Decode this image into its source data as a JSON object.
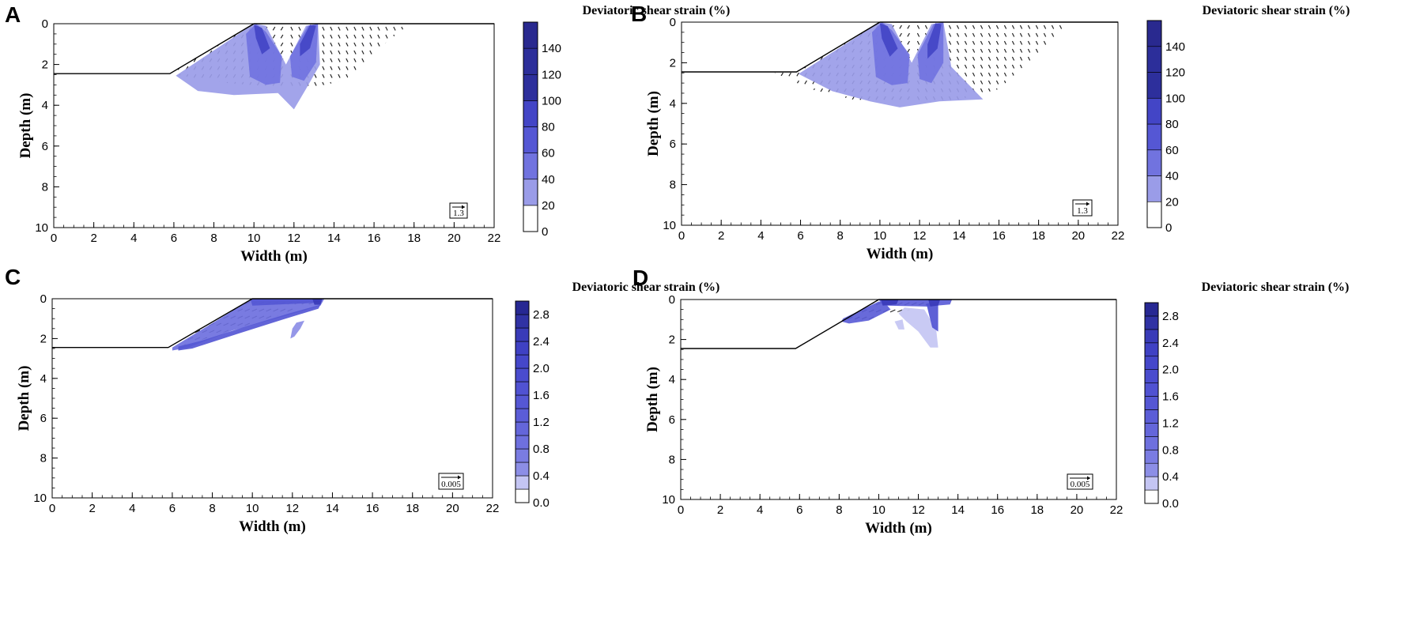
{
  "chart_data": [
    {
      "type": "contour",
      "panel": "A",
      "title": "",
      "xlabel": "Width (m)",
      "ylabel": "Depth (m)",
      "xlim": [
        0,
        22
      ],
      "ylim": [
        0,
        10
      ],
      "x_ticks": [
        "0",
        "2",
        "4",
        "6",
        "8",
        "10",
        "12",
        "14",
        "16",
        "18",
        "20",
        "22"
      ],
      "y_ticks": [
        "0",
        "2",
        "4",
        "6",
        "8",
        "10"
      ],
      "slope_profile": [
        [
          0,
          2.45
        ],
        [
          5.8,
          2.45
        ],
        [
          10,
          0
        ],
        [
          22,
          0
        ]
      ],
      "colorbar": {
        "title": "Deviatoric shear strain (%)",
        "levels": [
          0,
          20,
          40,
          60,
          80,
          100,
          120,
          140,
          160
        ],
        "labels": [
          "0",
          "20",
          "40",
          "60",
          "80",
          "100",
          "120",
          "140"
        ],
        "colors": [
          "#ffffff",
          "#9a9ce8",
          "#7173df",
          "#5557d4",
          "#4345c6",
          "#2d2f9c",
          "#2c2e9a",
          "#29298f"
        ]
      },
      "reference_vector": "1.3",
      "strain_regions": [
        {
          "level": 1,
          "points": [
            [
              6.1,
              2.55
            ],
            [
              10.0,
              0.0
            ],
            [
              10.6,
              0.1
            ],
            [
              11.6,
              2.0
            ],
            [
              12.6,
              0.1
            ],
            [
              13.2,
              0.0
            ],
            [
              13.3,
              2.0
            ],
            [
              12.6,
              3.2
            ],
            [
              12.0,
              4.2
            ],
            [
              11.2,
              3.4
            ],
            [
              9.0,
              3.5
            ],
            [
              7.2,
              3.3
            ]
          ]
        },
        {
          "level": 2,
          "points": [
            [
              9.6,
              0.5
            ],
            [
              10.1,
              0.0
            ],
            [
              10.6,
              0.4
            ],
            [
              11.4,
              1.6
            ],
            [
              11.3,
              2.9
            ],
            [
              10.6,
              3.0
            ],
            [
              9.8,
              2.6
            ]
          ]
        },
        {
          "level": 2,
          "points": [
            [
              11.8,
              1.6
            ],
            [
              12.7,
              0.1
            ],
            [
              13.2,
              0.0
            ],
            [
              13.1,
              1.9
            ],
            [
              12.5,
              2.8
            ],
            [
              11.9,
              2.6
            ]
          ]
        },
        {
          "level": 4,
          "points": [
            [
              10.0,
              0.05
            ],
            [
              10.4,
              0.2
            ],
            [
              10.8,
              1.2
            ],
            [
              10.4,
              1.5
            ],
            [
              10.1,
              0.7
            ]
          ]
        },
        {
          "level": 4,
          "points": [
            [
              12.8,
              0.05
            ],
            [
              13.1,
              0.1
            ],
            [
              12.8,
              1.2
            ],
            [
              12.3,
              1.6
            ],
            [
              12.3,
              1.0
            ]
          ]
        }
      ],
      "vector_zone": [
        [
          5.8,
          2.45
        ],
        [
          10.0,
          0.0
        ],
        [
          17.8,
          0.0
        ],
        [
          16.5,
          1.0
        ],
        [
          14.5,
          2.8
        ],
        [
          12.5,
          3.2
        ],
        [
          8.5,
          2.9
        ]
      ]
    },
    {
      "type": "contour",
      "panel": "B",
      "title": "",
      "xlabel": "Width (m)",
      "ylabel": "Depth (m)",
      "xlim": [
        0,
        22
      ],
      "ylim": [
        0,
        10
      ],
      "x_ticks": [
        "0",
        "2",
        "4",
        "6",
        "8",
        "10",
        "12",
        "14",
        "16",
        "18",
        "20",
        "22"
      ],
      "y_ticks": [
        "0",
        "2",
        "4",
        "6",
        "8",
        "10"
      ],
      "slope_profile": [
        [
          0,
          2.45
        ],
        [
          5.8,
          2.45
        ],
        [
          10,
          0
        ],
        [
          22,
          0
        ]
      ],
      "colorbar": {
        "title": "Deviatoric shear strain (%)",
        "levels": [
          0,
          20,
          40,
          60,
          80,
          100,
          120,
          140,
          160
        ],
        "labels": [
          "0",
          "20",
          "40",
          "60",
          "80",
          "100",
          "120",
          "140"
        ],
        "colors": [
          "#ffffff",
          "#9a9ce8",
          "#7173df",
          "#5557d4",
          "#4345c6",
          "#2d2f9c",
          "#2c2e9a",
          "#29298f"
        ]
      },
      "reference_vector": "1.3",
      "strain_regions": [
        {
          "level": 1,
          "points": [
            [
              5.9,
              2.55
            ],
            [
              10.0,
              0.0
            ],
            [
              10.6,
              0.1
            ],
            [
              11.6,
              2.0
            ],
            [
              12.6,
              0.1
            ],
            [
              13.2,
              0.0
            ],
            [
              13.6,
              2.2
            ],
            [
              15.2,
              3.8
            ],
            [
              13.0,
              3.9
            ],
            [
              11.0,
              4.2
            ],
            [
              9.5,
              3.9
            ],
            [
              7.6,
              3.4
            ]
          ]
        },
        {
          "level": 2,
          "points": [
            [
              9.6,
              0.5
            ],
            [
              10.1,
              0.0
            ],
            [
              10.6,
              0.4
            ],
            [
              11.5,
              1.6
            ],
            [
              11.4,
              3.0
            ],
            [
              10.6,
              3.1
            ],
            [
              9.8,
              2.7
            ]
          ]
        },
        {
          "level": 2,
          "points": [
            [
              11.9,
              1.6
            ],
            [
              12.7,
              0.1
            ],
            [
              13.2,
              0.0
            ],
            [
              13.2,
              2.0
            ],
            [
              12.6,
              3.0
            ],
            [
              12.0,
              2.8
            ]
          ]
        },
        {
          "level": 4,
          "points": [
            [
              10.0,
              0.05
            ],
            [
              10.4,
              0.2
            ],
            [
              10.9,
              1.3
            ],
            [
              10.5,
              1.7
            ],
            [
              10.1,
              0.8
            ]
          ]
        },
        {
          "level": 4,
          "points": [
            [
              12.8,
              0.05
            ],
            [
              13.1,
              0.1
            ],
            [
              12.9,
              1.3
            ],
            [
              12.4,
              1.8
            ],
            [
              12.4,
              1.1
            ]
          ]
        }
      ],
      "vector_zone": [
        [
          4.6,
          2.45
        ],
        [
          5.8,
          2.45
        ],
        [
          10.0,
          0.0
        ],
        [
          19.6,
          0.0
        ],
        [
          18.0,
          1.5
        ],
        [
          16.0,
          3.3
        ],
        [
          14.0,
          3.8
        ],
        [
          12.0,
          4.0
        ],
        [
          9.0,
          3.9
        ],
        [
          6.5,
          3.3
        ]
      ]
    },
    {
      "type": "contour",
      "panel": "C",
      "title": "",
      "xlabel": "Width (m)",
      "ylabel": "Depth (m)",
      "xlim": [
        0,
        22
      ],
      "ylim": [
        0,
        10
      ],
      "x_ticks": [
        "0",
        "2",
        "4",
        "6",
        "8",
        "10",
        "12",
        "14",
        "16",
        "18",
        "20",
        "22"
      ],
      "y_ticks": [
        "0",
        "2",
        "4",
        "6",
        "8",
        "10"
      ],
      "slope_profile": [
        [
          0,
          2.45
        ],
        [
          5.8,
          2.45
        ],
        [
          10,
          0
        ],
        [
          22,
          0
        ]
      ],
      "colorbar": {
        "title": "Deviatoric shear strain (%)",
        "levels": [
          0,
          0.2,
          0.4,
          0.6,
          0.8,
          1.0,
          1.2,
          1.4,
          1.6,
          1.8,
          2.0,
          2.2,
          2.4,
          2.6,
          2.8,
          3.0
        ],
        "labels": [
          "0.0",
          "0.4",
          "0.8",
          "1.2",
          "1.6",
          "2.0",
          "2.4",
          "2.8"
        ],
        "colors": [
          "#ffffff",
          "#c4c5f3",
          "#8c8ee6",
          "#7a7ce2",
          "#6e70de",
          "#6466da",
          "#5b5dd7",
          "#5557d4",
          "#5052d2",
          "#4a4cce",
          "#4547ca",
          "#3f41c4",
          "#393bb8",
          "#3032a4",
          "#272893"
        ]
      },
      "reference_vector": "0.005",
      "strain_regions": [
        {
          "level": 4,
          "points": [
            [
              6.0,
              2.45
            ],
            [
              10.0,
              0.0
            ],
            [
              13.6,
              0.0
            ],
            [
              13.4,
              0.35
            ],
            [
              11.5,
              0.9
            ],
            [
              9.0,
              1.6
            ],
            [
              6.8,
              2.45
            ],
            [
              6.0,
              2.6
            ]
          ]
        },
        {
          "level": 7,
          "points": [
            [
              6.3,
              2.4
            ],
            [
              7.5,
              2.1
            ],
            [
              9.5,
              1.45
            ],
            [
              11.8,
              0.75
            ],
            [
              13.4,
              0.3
            ],
            [
              13.3,
              0.5
            ],
            [
              11.5,
              1.05
            ],
            [
              9.3,
              1.75
            ],
            [
              7.0,
              2.5
            ],
            [
              6.3,
              2.6
            ]
          ]
        },
        {
          "level": 7,
          "points": [
            [
              9.9,
              0.0
            ],
            [
              13.5,
              0.0
            ],
            [
              13.3,
              0.2
            ],
            [
              10.0,
              0.35
            ]
          ]
        },
        {
          "level": 12,
          "points": [
            [
              13.0,
              0.0
            ],
            [
              13.5,
              0.0
            ],
            [
              13.4,
              0.3
            ],
            [
              13.1,
              0.3
            ]
          ]
        },
        {
          "level": 2,
          "points": [
            [
              12.2,
              1.2
            ],
            [
              12.6,
              1.1
            ],
            [
              12.4,
              1.5
            ],
            [
              12.1,
              1.9
            ],
            [
              11.9,
              2.0
            ],
            [
              12.0,
              1.5
            ]
          ]
        }
      ],
      "vector_zone": [
        [
          6.2,
          2.2
        ],
        [
          10.0,
          0.0
        ],
        [
          13.6,
          0.0
        ],
        [
          11.5,
          0.8
        ],
        [
          9.0,
          1.55
        ],
        [
          6.6,
          2.35
        ]
      ]
    },
    {
      "type": "contour",
      "panel": "D",
      "title": "",
      "xlabel": "Width (m)",
      "ylabel": "Depth (m)",
      "xlim": [
        0,
        22
      ],
      "ylim": [
        0,
        10
      ],
      "x_ticks": [
        "0",
        "2",
        "4",
        "6",
        "8",
        "10",
        "12",
        "14",
        "16",
        "18",
        "20",
        "22"
      ],
      "y_ticks": [
        "0",
        "2",
        "4",
        "6",
        "8",
        "10"
      ],
      "slope_profile": [
        [
          0,
          2.45
        ],
        [
          5.8,
          2.45
        ],
        [
          10,
          0
        ],
        [
          22,
          0
        ]
      ],
      "colorbar": {
        "title": "Deviatoric shear strain (%)",
        "levels": [
          0,
          0.2,
          0.4,
          0.6,
          0.8,
          1.0,
          1.2,
          1.4,
          1.6,
          1.8,
          2.0,
          2.2,
          2.4,
          2.6,
          2.8,
          3.0
        ],
        "labels": [
          "0.0",
          "0.4",
          "0.8",
          "1.2",
          "1.6",
          "2.0",
          "2.4",
          "2.8"
        ],
        "colors": [
          "#ffffff",
          "#c4c5f3",
          "#8c8ee6",
          "#7a7ce2",
          "#6e70de",
          "#6466da",
          "#5b5dd7",
          "#5557d4",
          "#5052d2",
          "#4a4cce",
          "#4547ca",
          "#3f41c4",
          "#393bb8",
          "#3032a4",
          "#272893"
        ]
      },
      "reference_vector": "0.005",
      "strain_regions": [
        {
          "level": 1,
          "points": [
            [
              11.3,
              0.4
            ],
            [
              12.3,
              0.5
            ],
            [
              12.9,
              1.5
            ],
            [
              13.0,
              2.4
            ],
            [
              12.6,
              2.4
            ],
            [
              12.0,
              1.6
            ],
            [
              11.4,
              1.1
            ],
            [
              11.0,
              0.7
            ]
          ]
        },
        {
          "level": 1,
          "points": [
            [
              10.8,
              1.1
            ],
            [
              11.2,
              1.0
            ],
            [
              11.3,
              1.5
            ],
            [
              11.0,
              1.5
            ]
          ]
        },
        {
          "level": 6,
          "points": [
            [
              8.2,
              0.95
            ],
            [
              10.0,
              0.1
            ],
            [
              10.3,
              0.15
            ],
            [
              10.6,
              0.5
            ],
            [
              9.5,
              1.05
            ],
            [
              8.5,
              1.2
            ],
            [
              8.1,
              1.1
            ]
          ]
        },
        {
          "level": 6,
          "points": [
            [
              10.0,
              0.0
            ],
            [
              13.7,
              0.0
            ],
            [
              13.6,
              0.25
            ],
            [
              12.4,
              0.35
            ],
            [
              10.2,
              0.3
            ]
          ]
        },
        {
          "level": 8,
          "points": [
            [
              12.4,
              0.2
            ],
            [
              13.0,
              0.2
            ],
            [
              13.0,
              1.6
            ],
            [
              12.7,
              1.4
            ]
          ]
        },
        {
          "level": 12,
          "points": [
            [
              10.1,
              0.0
            ],
            [
              11.0,
              0.0
            ],
            [
              10.9,
              0.25
            ],
            [
              10.2,
              0.3
            ]
          ]
        },
        {
          "level": 12,
          "points": [
            [
              12.5,
              0.0
            ],
            [
              13.1,
              0.0
            ],
            [
              13.0,
              0.3
            ],
            [
              12.6,
              0.35
            ]
          ]
        }
      ],
      "vector_zone": [
        [
          8.2,
          1.0
        ],
        [
          10.0,
          0.0
        ],
        [
          13.0,
          0.0
        ],
        [
          12.6,
          0.35
        ],
        [
          10.5,
          0.7
        ],
        [
          9.2,
          1.1
        ]
      ]
    }
  ]
}
